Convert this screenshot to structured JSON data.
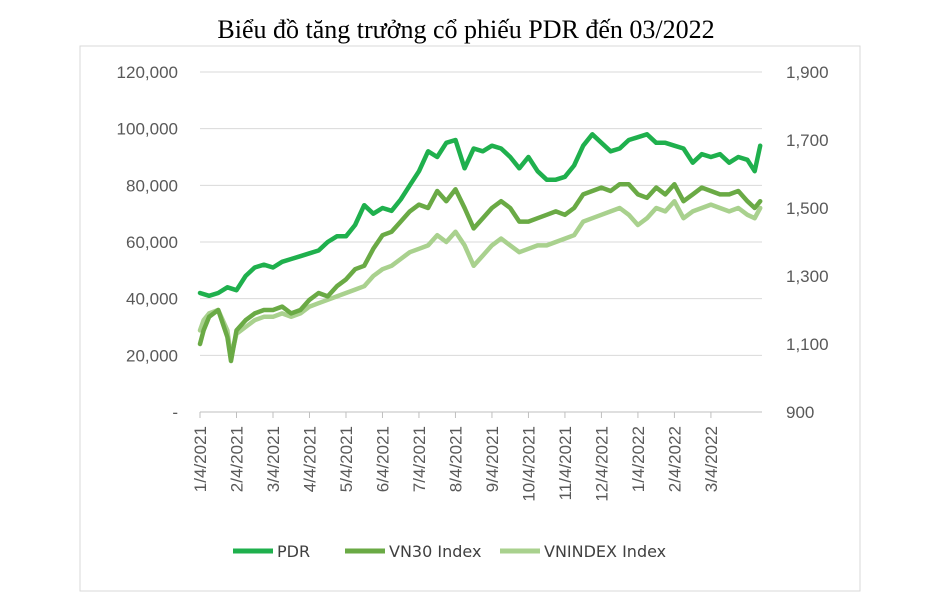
{
  "chart_data": {
    "type": "line",
    "title": "Biểu đồ tăng trưởng cổ phiếu PDR đến 03/2022",
    "x_tick_labels": [
      "1/4/2021",
      "2/4/2021",
      "3/4/2021",
      "4/4/2021",
      "5/4/2021",
      "6/4/2021",
      "7/4/2021",
      "8/4/2021",
      "9/4/2021",
      "10/4/2021",
      "11/4/2021",
      "12/4/2021",
      "1/4/2022",
      "2/4/2022",
      "3/4/2022"
    ],
    "x_range_months": [
      0,
      15.4
    ],
    "y_left": {
      "ticks": [
        0,
        20000,
        40000,
        60000,
        80000,
        100000,
        120000
      ],
      "tick_labels": [
        "-",
        "20,000",
        "40,000",
        "60,000",
        "80,000",
        "100,000",
        "120,000"
      ],
      "range": [
        0,
        120000
      ]
    },
    "y_right": {
      "ticks": [
        900,
        1100,
        1300,
        1500,
        1700,
        1900
      ],
      "tick_labels": [
        "900",
        "1,100",
        "1,300",
        "1,500",
        "1,700",
        "1,900"
      ],
      "range": [
        900,
        1900
      ]
    },
    "series": [
      {
        "name": "PDR",
        "axis": "left",
        "color": "#1fb04d",
        "x": [
          0,
          0.25,
          0.5,
          0.75,
          1.0,
          1.25,
          1.5,
          1.75,
          2.0,
          2.25,
          2.5,
          2.75,
          3.0,
          3.25,
          3.5,
          3.75,
          4.0,
          4.25,
          4.5,
          4.75,
          5.0,
          5.25,
          5.5,
          5.75,
          6.0,
          6.25,
          6.5,
          6.75,
          7.0,
          7.25,
          7.5,
          7.75,
          8.0,
          8.25,
          8.5,
          8.75,
          9.0,
          9.25,
          9.5,
          9.75,
          10.0,
          10.25,
          10.5,
          10.75,
          11.0,
          11.25,
          11.5,
          11.75,
          12.0,
          12.25,
          12.5,
          12.75,
          13.0,
          13.25,
          13.5,
          13.75,
          14.0,
          14.25,
          14.5,
          14.75,
          15.0,
          15.2,
          15.35
        ],
        "values": [
          42000,
          41000,
          42000,
          44000,
          43000,
          48000,
          51000,
          52000,
          51000,
          53000,
          54000,
          55000,
          56000,
          57000,
          60000,
          62000,
          62000,
          66000,
          73000,
          70000,
          72000,
          71000,
          75000,
          80000,
          85000,
          92000,
          90000,
          95000,
          96000,
          86000,
          93000,
          92000,
          94000,
          93000,
          90000,
          86000,
          90000,
          85000,
          82000,
          82000,
          83000,
          87000,
          94000,
          98000,
          95000,
          92000,
          93000,
          96000,
          97000,
          98000,
          95000,
          95000,
          94000,
          93000,
          88000,
          91000,
          90000,
          91000,
          88000,
          90000,
          89000,
          85000,
          94000
        ]
      },
      {
        "name": "VN30 Index",
        "axis": "right",
        "color": "#6aaa45",
        "x": [
          0,
          0.1,
          0.25,
          0.5,
          0.75,
          0.85,
          1.0,
          1.25,
          1.5,
          1.75,
          2.0,
          2.25,
          2.5,
          2.75,
          3.0,
          3.25,
          3.5,
          3.75,
          4.0,
          4.25,
          4.5,
          4.75,
          5.0,
          5.25,
          5.5,
          5.75,
          6.0,
          6.25,
          6.5,
          6.75,
          7.0,
          7.25,
          7.5,
          7.75,
          8.0,
          8.25,
          8.5,
          8.75,
          9.0,
          9.25,
          9.5,
          9.75,
          10.0,
          10.25,
          10.5,
          10.75,
          11.0,
          11.25,
          11.5,
          11.75,
          12.0,
          12.25,
          12.5,
          12.75,
          13.0,
          13.25,
          13.5,
          13.75,
          14.0,
          14.25,
          14.5,
          14.75,
          15.0,
          15.2,
          15.35
        ],
        "values": [
          1100,
          1140,
          1180,
          1200,
          1120,
          1050,
          1140,
          1170,
          1190,
          1200,
          1200,
          1210,
          1190,
          1200,
          1230,
          1250,
          1240,
          1270,
          1290,
          1320,
          1330,
          1380,
          1420,
          1430,
          1460,
          1490,
          1510,
          1500,
          1550,
          1520,
          1555,
          1500,
          1440,
          1470,
          1500,
          1520,
          1500,
          1460,
          1460,
          1470,
          1480,
          1490,
          1480,
          1500,
          1540,
          1550,
          1560,
          1550,
          1570,
          1570,
          1540,
          1530,
          1560,
          1540,
          1570,
          1520,
          1540,
          1560,
          1550,
          1540,
          1540,
          1550,
          1520,
          1500,
          1520
        ]
      },
      {
        "name": "VNINDEX Index",
        "axis": "right",
        "color": "#a9d18e",
        "x": [
          0,
          0.1,
          0.25,
          0.5,
          0.75,
          0.85,
          1.0,
          1.25,
          1.5,
          1.75,
          2.0,
          2.25,
          2.5,
          2.75,
          3.0,
          3.25,
          3.5,
          3.75,
          4.0,
          4.25,
          4.5,
          4.75,
          5.0,
          5.25,
          5.5,
          5.75,
          6.0,
          6.25,
          6.5,
          6.75,
          7.0,
          7.25,
          7.5,
          7.75,
          8.0,
          8.25,
          8.5,
          8.75,
          9.0,
          9.25,
          9.5,
          9.75,
          10.0,
          10.25,
          10.5,
          10.75,
          11.0,
          11.25,
          11.5,
          11.75,
          12.0,
          12.25,
          12.5,
          12.75,
          13.0,
          13.25,
          13.5,
          13.75,
          14.0,
          14.25,
          14.5,
          14.75,
          15.0,
          15.2,
          15.35
        ],
        "values": [
          1140,
          1170,
          1190,
          1200,
          1140,
          1060,
          1130,
          1150,
          1170,
          1180,
          1180,
          1190,
          1180,
          1190,
          1210,
          1220,
          1230,
          1240,
          1250,
          1260,
          1270,
          1300,
          1320,
          1330,
          1350,
          1370,
          1380,
          1390,
          1420,
          1400,
          1430,
          1390,
          1330,
          1360,
          1390,
          1410,
          1390,
          1370,
          1380,
          1390,
          1390,
          1400,
          1410,
          1420,
          1460,
          1470,
          1480,
          1490,
          1500,
          1480,
          1450,
          1470,
          1500,
          1490,
          1520,
          1470,
          1490,
          1500,
          1510,
          1500,
          1490,
          1500,
          1480,
          1470,
          1500
        ]
      }
    ],
    "legend": {
      "position": "bottom",
      "entries": [
        "PDR",
        "VN30 Index",
        "VNINDEX Index"
      ]
    }
  }
}
